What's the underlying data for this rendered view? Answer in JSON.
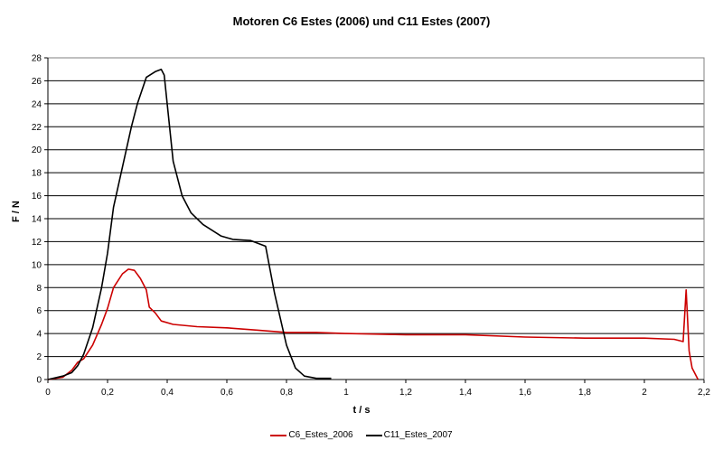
{
  "chart_data": {
    "type": "line",
    "title": "Motoren C6 Estes (2006) und C11 Estes (2007)",
    "xlabel": "t / s",
    "ylabel": "F / N",
    "xlim": [
      0,
      2.2
    ],
    "ylim": [
      0,
      28
    ],
    "x_ticks": [
      "0",
      "0,2",
      "0,4",
      "0,6",
      "0,8",
      "1",
      "1,2",
      "1,4",
      "1,6",
      "1,8",
      "2",
      "2,2"
    ],
    "y_ticks": [
      "0",
      "2",
      "4",
      "6",
      "8",
      "10",
      "12",
      "14",
      "16",
      "18",
      "20",
      "22",
      "24",
      "26",
      "28"
    ],
    "grid": "horizontal",
    "legend_position": "bottom",
    "series": [
      {
        "name": "C6_Estes_2006",
        "color": "#cc0000",
        "x": [
          0.0,
          0.05,
          0.08,
          0.1,
          0.12,
          0.15,
          0.18,
          0.2,
          0.22,
          0.25,
          0.27,
          0.29,
          0.31,
          0.33,
          0.34,
          0.36,
          0.38,
          0.42,
          0.5,
          0.6,
          0.7,
          0.8,
          0.9,
          1.0,
          1.2,
          1.4,
          1.6,
          1.8,
          2.0,
          2.1,
          2.13,
          2.14,
          2.15,
          2.16,
          2.18
        ],
        "y": [
          0.0,
          0.2,
          0.8,
          1.5,
          1.8,
          3.0,
          4.8,
          6.2,
          8.0,
          9.2,
          9.6,
          9.5,
          8.8,
          7.8,
          6.3,
          5.8,
          5.1,
          4.8,
          4.6,
          4.5,
          4.3,
          4.1,
          4.1,
          4.0,
          3.9,
          3.9,
          3.7,
          3.6,
          3.6,
          3.5,
          3.3,
          7.8,
          2.5,
          1.0,
          0.0
        ]
      },
      {
        "name": "C11_Estes_2007",
        "color": "#000000",
        "x": [
          0.0,
          0.05,
          0.08,
          0.1,
          0.12,
          0.15,
          0.18,
          0.2,
          0.22,
          0.25,
          0.28,
          0.3,
          0.33,
          0.36,
          0.38,
          0.39,
          0.4,
          0.42,
          0.45,
          0.48,
          0.52,
          0.58,
          0.62,
          0.68,
          0.7,
          0.73,
          0.76,
          0.8,
          0.83,
          0.86,
          0.9,
          0.95
        ],
        "y": [
          0.0,
          0.3,
          0.6,
          1.2,
          2.2,
          4.5,
          8.0,
          11.0,
          15.0,
          18.5,
          22.0,
          24.0,
          26.3,
          26.8,
          27.0,
          26.5,
          24.0,
          19.0,
          16.0,
          14.5,
          13.5,
          12.5,
          12.2,
          12.1,
          11.9,
          11.6,
          7.5,
          3.0,
          1.0,
          0.3,
          0.1,
          0.1
        ]
      }
    ]
  }
}
